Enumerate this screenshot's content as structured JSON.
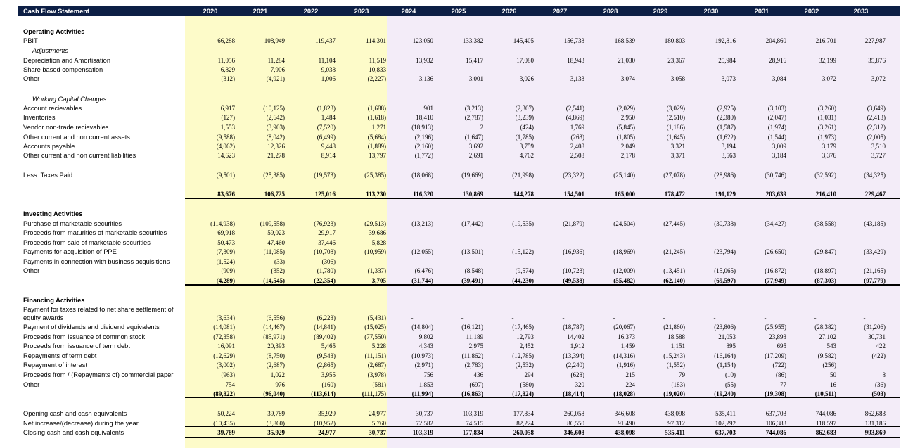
{
  "title": "Cash Flow Statement",
  "colors": {
    "header_bg": "#0d1f45",
    "historic_bg": "#fdfbc9",
    "forecast_bg": "#f3ecf8"
  },
  "years": [
    "2020",
    "2021",
    "2022",
    "2023",
    "2024",
    "2025",
    "2026",
    "2027",
    "2028",
    "2029",
    "2030",
    "2031",
    "2032",
    "2033"
  ],
  "rows": [
    {
      "label": "Operating Activities",
      "style": "sec"
    },
    {
      "label": "PBIT",
      "v": [
        "66,288",
        "108,949",
        "119,437",
        "114,301",
        "123,050",
        "133,382",
        "145,405",
        "156,733",
        "168,539",
        "180,803",
        "192,816",
        "204,860",
        "216,701",
        "227,987"
      ]
    },
    {
      "label": "Adjustments",
      "style": "italic"
    },
    {
      "label": "Depreciation and Amortisation",
      "v": [
        "11,056",
        "11,284",
        "11,104",
        "11,519",
        "13,932",
        "15,417",
        "17,080",
        "18,943",
        "21,030",
        "23,367",
        "25,984",
        "28,916",
        "32,199",
        "35,876"
      ]
    },
    {
      "label": "Share based compensation",
      "v": [
        "6,829",
        "7,906",
        "9,038",
        "10,833",
        "",
        "",
        "",
        "",
        "",
        "",
        "",
        "",
        "",
        ""
      ]
    },
    {
      "label": "Other",
      "v": [
        "(312)",
        "(4,921)",
        "1,006",
        "(2,227)",
        "3,136",
        "3,001",
        "3,026",
        "3,133",
        "3,074",
        "3,058",
        "3,073",
        "3,084",
        "3,072",
        "3,072"
      ]
    },
    {
      "label": "Working Capital Changes",
      "style": "italic"
    },
    {
      "label": "Account recievables",
      "v": [
        "6,917",
        "(10,125)",
        "(1,823)",
        "(1,688)",
        "901",
        "(3,213)",
        "(2,307)",
        "(2,541)",
        "(2,029)",
        "(3,029)",
        "(2,925)",
        "(3,103)",
        "(3,260)",
        "(3,649)"
      ]
    },
    {
      "label": "Inventories",
      "v": [
        "(127)",
        "(2,642)",
        "1,484",
        "(1,618)",
        "18,410",
        "(2,787)",
        "(3,239)",
        "(4,869)",
        "2,950",
        "(2,510)",
        "(2,380)",
        "(2,047)",
        "(1,031)",
        "(2,413)"
      ]
    },
    {
      "label": "Vendor non-trade recievables",
      "v": [
        "1,553",
        "(3,903)",
        "(7,520)",
        "1,271",
        "(18,913)",
        "2",
        "(424)",
        "1,769",
        "(5,845)",
        "(1,186)",
        "(1,587)",
        "(1,974)",
        "(3,261)",
        "(2,312)"
      ]
    },
    {
      "label": "Other current and non current assets",
      "v": [
        "(9,588)",
        "(8,042)",
        "(6,499)",
        "(5,684)",
        "(2,196)",
        "(1,647)",
        "(1,785)",
        "(263)",
        "(1,805)",
        "(1,645)",
        "(1,622)",
        "(1,544)",
        "(1,973)",
        "(2,005)"
      ]
    },
    {
      "label": "Accounts payable",
      "v": [
        "(4,062)",
        "12,326",
        "9,448",
        "(1,889)",
        "(2,160)",
        "3,692",
        "3,759",
        "2,408",
        "2,049",
        "3,321",
        "3,194",
        "3,009",
        "3,179",
        "3,510"
      ]
    },
    {
      "label": "Other current and non current liabilities",
      "v": [
        "14,623",
        "21,278",
        "8,914",
        "13,797",
        "(1,772)",
        "2,691",
        "4,762",
        "2,508",
        "2,178",
        "3,371",
        "3,563",
        "3,184",
        "3,376",
        "3,727"
      ]
    },
    {
      "label": "Less: Taxes Paid",
      "v": [
        "(9,501)",
        "(25,385)",
        "(19,573)",
        "(25,385)",
        "(18,068)",
        "(19,669)",
        "(21,998)",
        "(23,322)",
        "(25,140)",
        "(27,078)",
        "(28,986)",
        "(30,746)",
        "(32,592)",
        "(34,325)"
      ]
    },
    {
      "label": "",
      "style": "total",
      "v": [
        "83,676",
        "106,725",
        "125,016",
        "113,230",
        "116,320",
        "130,869",
        "144,278",
        "154,501",
        "165,000",
        "178,472",
        "191,129",
        "203,639",
        "216,410",
        "229,467"
      ]
    },
    {
      "label": "Investing Activities",
      "style": "sec"
    },
    {
      "label": "Purchase of marketable securities",
      "v": [
        "(114,938)",
        "(109,558)",
        "(76,923)",
        "(29,513)",
        "(13,213)",
        "(17,442)",
        "(19,535)",
        "(21,879)",
        "(24,504)",
        "(27,445)",
        "(30,738)",
        "(34,427)",
        "(38,558)",
        "(43,185)"
      ]
    },
    {
      "label": "Proceeds from maturities of marketable securities",
      "v": [
        "69,918",
        "59,023",
        "29,917",
        "39,686",
        "",
        "",
        "",
        "",
        "",
        "",
        "",
        "",
        "",
        ""
      ]
    },
    {
      "label": "Proceeds from sale of marketable securities",
      "v": [
        "50,473",
        "47,460",
        "37,446",
        "5,828",
        "",
        "",
        "",
        "",
        "",
        "",
        "",
        "",
        "",
        ""
      ]
    },
    {
      "label": "Payments for acquisition of PPE",
      "v": [
        "(7,309)",
        "(11,085)",
        "(10,708)",
        "(10,959)",
        "(12,055)",
        "(13,501)",
        "(15,122)",
        "(16,936)",
        "(18,969)",
        "(21,245)",
        "(23,794)",
        "(26,650)",
        "(29,847)",
        "(33,429)"
      ]
    },
    {
      "label": "Payments in connection with business acquisitions",
      "v": [
        "(1,524)",
        "(33)",
        "(306)",
        "",
        "",
        "",
        "",
        "",
        "",
        "",
        "",
        "",
        "",
        ""
      ]
    },
    {
      "label": "Other",
      "v": [
        "(909)",
        "(352)",
        "(1,780)",
        "(1,337)",
        "(6,476)",
        "(8,548)",
        "(9,574)",
        "(10,723)",
        "(12,009)",
        "(13,451)",
        "(15,065)",
        "(16,872)",
        "(18,897)",
        "(21,165)"
      ]
    },
    {
      "label": "",
      "style": "total",
      "v": [
        "(4,289)",
        "(14,545)",
        "(22,354)",
        "3,705",
        "(31,744)",
        "(39,491)",
        "(44,230)",
        "(49,538)",
        "(55,482)",
        "(62,140)",
        "(69,597)",
        "(77,949)",
        "(87,303)",
        "(97,779)"
      ]
    },
    {
      "label": "Financing Activities",
      "style": "sec"
    },
    {
      "label": "Payment for taxes related to net share settlement of",
      "style": "plain"
    },
    {
      "label": "equity awards",
      "v": [
        "(3,634)",
        "(6,556)",
        "(6,223)",
        "(5,431)",
        "-",
        "-",
        "-",
        "-",
        "-",
        "-",
        "-",
        "-",
        "-",
        "-"
      ]
    },
    {
      "label": "Payment of dividends and dividend equivalents",
      "v": [
        "(14,081)",
        "(14,467)",
        "(14,841)",
        "(15,025)",
        "(14,804)",
        "(16,121)",
        "(17,465)",
        "(18,787)",
        "(20,067)",
        "(21,860)",
        "(23,806)",
        "(25,955)",
        "(28,382)",
        "(31,206)"
      ]
    },
    {
      "label": "Proceeds from Issuance of common stock",
      "v": [
        "(72,358)",
        "(85,971)",
        "(89,402)",
        "(77,550)",
        "9,802",
        "11,189",
        "12,793",
        "14,402",
        "16,373",
        "18,588",
        "21,053",
        "23,893",
        "27,102",
        "30,731"
      ]
    },
    {
      "label": "Proceeds from issuance of term debt",
      "v": [
        "16,091",
        "20,393",
        "5,465",
        "5,228",
        "4,343",
        "2,975",
        "2,452",
        "1,912",
        "1,459",
        "1,151",
        "895",
        "695",
        "543",
        "422"
      ]
    },
    {
      "label": "Repayments of term debt",
      "v": [
        "(12,629)",
        "(8,750)",
        "(9,543)",
        "(11,151)",
        "(10,973)",
        "(11,862)",
        "(12,785)",
        "(13,394)",
        "(14,316)",
        "(15,243)",
        "(16,164)",
        "(17,209)",
        "(9,582)",
        "(422)"
      ]
    },
    {
      "label": "Repayment of interest",
      "v": [
        "(3,002)",
        "(2,687)",
        "(2,865)",
        "(2,687)",
        "(2,971)",
        "(2,783)",
        "(2,532)",
        "(2,240)",
        "(1,916)",
        "(1,552)",
        "(1,154)",
        "(722)",
        "(256)",
        ""
      ]
    },
    {
      "label": "Proceeds from / (Repayments of) commercial paper",
      "v": [
        "(963)",
        "1,022",
        "3,955",
        "(3,978)",
        "756",
        "436",
        "294",
        "(628)",
        "215",
        "79",
        "(10)",
        "(86)",
        "50",
        "8"
      ]
    },
    {
      "label": "Other",
      "v": [
        "754",
        "976",
        "(160)",
        "(581)",
        "1,853",
        "(697)",
        "(580)",
        "320",
        "224",
        "(183)",
        "(55)",
        "77",
        "16",
        "(36)"
      ]
    },
    {
      "label": "",
      "style": "total",
      "v": [
        "(89,822)",
        "(96,040)",
        "(113,614)",
        "(111,175)",
        "(11,994)",
        "(16,863)",
        "(17,824)",
        "(18,414)",
        "(18,028)",
        "(19,020)",
        "(19,240)",
        "(19,308)",
        "(10,511)",
        "(503)"
      ]
    },
    {
      "label": "Opening cash and cash equivalents",
      "v": [
        "50,224",
        "39,789",
        "35,929",
        "24,977",
        "30,737",
        "103,319",
        "177,834",
        "260,058",
        "346,608",
        "438,098",
        "535,411",
        "637,703",
        "744,086",
        "862,683"
      ]
    },
    {
      "label": "Net increase/(decrease) during the year",
      "v": [
        "(10,435)",
        "(3,860)",
        "(10,952)",
        "5,760",
        "72,582",
        "74,515",
        "82,224",
        "86,550",
        "91,490",
        "97,312",
        "102,292",
        "106,383",
        "118,597",
        "131,186"
      ]
    },
    {
      "label": "Closing cash and cash equivalents",
      "style": "totalb",
      "v": [
        "39,789",
        "35,929",
        "24,977",
        "30,737",
        "103,319",
        "177,834",
        "260,058",
        "346,608",
        "438,098",
        "535,411",
        "637,703",
        "744,086",
        "862,683",
        "993,869"
      ]
    }
  ]
}
